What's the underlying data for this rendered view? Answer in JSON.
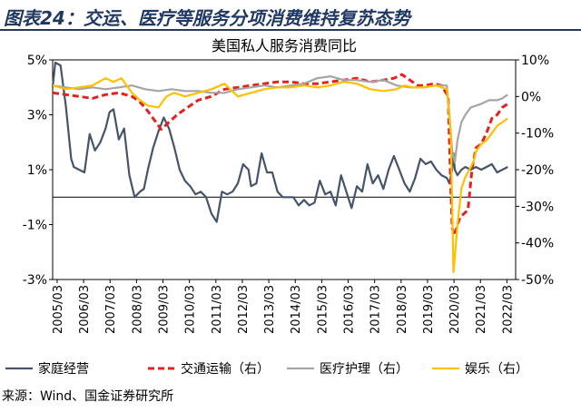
{
  "header": {
    "title": "图表24：交运、医疗等服务分项消费维持复苏态势"
  },
  "source": "来源：Wind、国金证券研究所",
  "chart_data": {
    "type": "line",
    "title": "美国私人服务消费同比",
    "xlabel": "",
    "ylabel_left": "",
    "ylabel_right": "",
    "x_tick_labels": [
      "2005/03",
      "2006/03",
      "2007/03",
      "2008/03",
      "2009/03",
      "2010/03",
      "2011/03",
      "2012/03",
      "2013/03",
      "2014/03",
      "2015/03",
      "2016/03",
      "2017/03",
      "2018/03",
      "2019/03",
      "2020/03",
      "2021/03",
      "2022/03"
    ],
    "x_range": [
      2005.0,
      2022.5
    ],
    "y_left": {
      "ticks": [
        "5%",
        "3%",
        "1%",
        "-1%",
        "-3%"
      ],
      "values": [
        5,
        3,
        1,
        -1,
        -3
      ],
      "range": [
        -3,
        5
      ]
    },
    "y_right": {
      "ticks": [
        "10%",
        "0%",
        "-10%",
        "-20%",
        "-30%",
        "-40%",
        "-50%"
      ],
      "values": [
        10,
        0,
        -10,
        -20,
        -30,
        -40,
        -50
      ],
      "range": [
        -50,
        10
      ]
    },
    "legend_position": "bottom",
    "series": [
      {
        "name": "家庭经营",
        "axis": "left",
        "color": "#44546a",
        "style": "solid",
        "x": [
          2005.0,
          2005.1,
          2005.3,
          2005.5,
          2005.7,
          2005.8,
          2006.0,
          2006.2,
          2006.4,
          2006.6,
          2006.8,
          2007.0,
          2007.15,
          2007.3,
          2007.5,
          2007.7,
          2007.9,
          2008.1,
          2008.3,
          2008.45,
          2008.6,
          2008.8,
          2009.0,
          2009.2,
          2009.4,
          2009.6,
          2009.8,
          2010.0,
          2010.2,
          2010.4,
          2010.6,
          2010.8,
          2011.0,
          2011.2,
          2011.4,
          2011.6,
          2011.8,
          2012.0,
          2012.2,
          2012.4,
          2012.5,
          2012.7,
          2012.9,
          2013.1,
          2013.3,
          2013.5,
          2013.7,
          2013.9,
          2014.1,
          2014.3,
          2014.5,
          2014.7,
          2014.9,
          2015.1,
          2015.3,
          2015.5,
          2015.7,
          2015.9,
          2016.1,
          2016.3,
          2016.5,
          2016.7,
          2016.9,
          2017.1,
          2017.3,
          2017.5,
          2017.7,
          2017.9,
          2018.1,
          2018.3,
          2018.5,
          2018.7,
          2018.9,
          2019.1,
          2019.3,
          2019.5,
          2019.7,
          2019.9,
          2020.0,
          2020.1,
          2020.15,
          2020.2,
          2020.3,
          2020.45,
          2020.6,
          2020.8,
          2021.0,
          2021.2,
          2021.4,
          2021.6,
          2021.8,
          2022.0,
          2022.2
        ],
        "values": [
          4.0,
          4.9,
          4.8,
          3.3,
          1.4,
          1.1,
          1.0,
          0.9,
          2.3,
          1.7,
          2.0,
          2.5,
          3.1,
          3.2,
          2.1,
          2.5,
          0.8,
          0.0,
          0.2,
          0.3,
          1.0,
          1.8,
          2.4,
          2.9,
          2.5,
          1.8,
          1.0,
          0.6,
          0.4,
          0.1,
          0.2,
          0.0,
          -0.6,
          -0.9,
          0.2,
          0.1,
          0.2,
          0.5,
          1.2,
          1.0,
          0.4,
          0.5,
          1.6,
          0.9,
          0.9,
          0.2,
          0.0,
          0.0,
          0.0,
          -0.3,
          -0.1,
          -0.3,
          -0.2,
          0.6,
          0.1,
          0.2,
          -0.3,
          0.8,
          0.2,
          -0.4,
          0.4,
          0.2,
          1.2,
          0.5,
          0.8,
          0.3,
          1.0,
          1.5,
          1.0,
          0.5,
          0.2,
          0.7,
          1.4,
          1.2,
          1.3,
          1.0,
          0.8,
          0.7,
          0.5,
          1.0,
          1.6,
          1.0,
          0.8,
          1.0,
          1.1,
          1.0,
          1.1,
          1.0,
          1.1,
          1.2,
          0.9,
          1.0,
          1.1
        ]
      },
      {
        "name": "交通运输（右）",
        "axis": "right",
        "color": "#e81f1f",
        "style": "dashed",
        "x": [
          2005.0,
          2005.5,
          2006.0,
          2006.5,
          2007.0,
          2007.5,
          2008.0,
          2008.3,
          2008.6,
          2008.9,
          2009.1,
          2009.4,
          2009.7,
          2010.0,
          2010.5,
          2011.0,
          2011.5,
          2012.0,
          2012.5,
          2013.0,
          2013.5,
          2014.0,
          2014.5,
          2015.0,
          2015.5,
          2016.0,
          2016.5,
          2017.0,
          2017.5,
          2017.9,
          2018.2,
          2018.5,
          2018.8,
          2019.1,
          2019.4,
          2019.7,
          2019.95,
          2020.05,
          2020.1,
          2020.2,
          2020.3,
          2020.4,
          2020.55,
          2020.7,
          2020.85,
          2021.0,
          2021.2,
          2021.4,
          2021.6,
          2021.8,
          2022.0,
          2022.2
        ],
        "values": [
          1.0,
          0.5,
          0.0,
          -0.5,
          0.5,
          1.0,
          0.0,
          -1.5,
          -4.0,
          -7.0,
          -9.0,
          -7.0,
          -5.0,
          -3.5,
          -1.0,
          0.0,
          2.0,
          2.5,
          3.0,
          3.5,
          4.0,
          4.0,
          3.5,
          3.5,
          4.0,
          4.5,
          5.0,
          4.0,
          4.5,
          5.0,
          6.0,
          4.5,
          3.0,
          3.0,
          3.5,
          3.0,
          0.0,
          -25.0,
          -36.0,
          -38.0,
          -35.0,
          -33.0,
          -32.0,
          -31.0,
          -20.0,
          -14.0,
          -13.0,
          -10.0,
          -6.0,
          -5.0,
          -3.0,
          -2.0
        ]
      },
      {
        "name": "医疗护理（右）",
        "axis": "right",
        "color": "#a5a5a5",
        "style": "solid",
        "x": [
          2005.0,
          2005.5,
          2006.0,
          2006.5,
          2007.0,
          2007.5,
          2008.0,
          2008.5,
          2009.0,
          2009.5,
          2010.0,
          2010.5,
          2011.0,
          2011.5,
          2012.0,
          2012.5,
          2013.0,
          2013.5,
          2014.0,
          2014.5,
          2015.0,
          2015.5,
          2016.0,
          2016.5,
          2017.0,
          2017.5,
          2018.0,
          2018.5,
          2019.0,
          2019.5,
          2019.9,
          2020.0,
          2020.1,
          2020.2,
          2020.3,
          2020.45,
          2020.6,
          2020.8,
          2021.0,
          2021.2,
          2021.5,
          2021.8,
          2022.0,
          2022.2
        ],
        "values": [
          3.0,
          2.5,
          2.0,
          2.5,
          2.0,
          2.5,
          3.0,
          2.0,
          1.5,
          2.0,
          1.5,
          1.5,
          1.0,
          1.0,
          2.0,
          2.5,
          3.0,
          2.5,
          3.0,
          3.5,
          5.0,
          5.5,
          4.5,
          4.5,
          4.0,
          4.5,
          3.0,
          2.5,
          2.5,
          3.0,
          3.0,
          -5.0,
          -15.0,
          -18.0,
          -12.0,
          -7.0,
          -5.0,
          -3.0,
          -2.5,
          -2.0,
          -1.0,
          -1.0,
          -0.5,
          0.5
        ]
      },
      {
        "name": "娱乐（右）",
        "axis": "right",
        "color": "#ffc000",
        "style": "solid",
        "x": [
          2005.0,
          2005.5,
          2006.0,
          2006.5,
          2007.0,
          2007.3,
          2007.6,
          2008.0,
          2008.3,
          2008.6,
          2009.0,
          2009.3,
          2009.6,
          2010.0,
          2010.5,
          2011.0,
          2011.5,
          2012.0,
          2012.5,
          2013.0,
          2013.5,
          2014.0,
          2014.5,
          2015.0,
          2015.5,
          2016.0,
          2016.5,
          2017.0,
          2017.5,
          2018.0,
          2018.3,
          2018.6,
          2019.0,
          2019.5,
          2019.9,
          2020.05,
          2020.1,
          2020.15,
          2020.2,
          2020.3,
          2020.45,
          2020.6,
          2020.75,
          2020.9,
          2021.0,
          2021.2,
          2021.4,
          2021.6,
          2021.8,
          2022.0,
          2022.2
        ],
        "values": [
          3.0,
          2.0,
          2.5,
          3.0,
          5.0,
          4.0,
          5.0,
          1.0,
          -1.0,
          -2.5,
          -3.0,
          0.0,
          1.0,
          0.0,
          1.0,
          2.0,
          3.5,
          0.0,
          1.0,
          2.0,
          2.5,
          2.5,
          3.0,
          2.5,
          3.0,
          4.0,
          3.5,
          2.0,
          1.5,
          2.0,
          3.0,
          2.5,
          2.5,
          3.0,
          2.0,
          -10.0,
          -30.0,
          -48.0,
          -44.0,
          -35.0,
          -25.0,
          -22.0,
          -20.0,
          -18.0,
          -15.0,
          -13.0,
          -12.0,
          -10.0,
          -8.0,
          -7.0,
          -6.0
        ]
      }
    ]
  }
}
